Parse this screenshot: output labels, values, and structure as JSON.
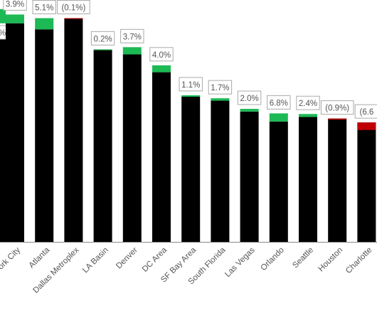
{
  "chart_data": {
    "type": "bar",
    "title": "",
    "xlabel": "",
    "ylabel": "",
    "categories": [
      "York City",
      "Atlanta",
      "Dallas Metroplex",
      "LA Basin",
      "Denver",
      "DC Area",
      "SF Bay Area",
      "South Florida",
      "Las Vegas",
      "Orlando",
      "Seattle",
      "Houston",
      "Charlotte"
    ],
    "series": [
      {
        "values": [
          72.3,
          70.3,
          74.0,
          63.4,
          62.0,
          56.1,
          48.0,
          46.7,
          43.1,
          39.8,
          41.3,
          40.8,
          39.5
        ]
      },
      {
        "values": [
          2.9,
          3.7,
          -0.1,
          0.2,
          2.4,
          2.3,
          0.5,
          0.8,
          0.9,
          2.7,
          1.0,
          -0.4,
          -2.5
        ]
      }
    ],
    "data_labels": [
      "3.9%",
      "5.1%",
      "(0.1%)",
      "0.2%",
      "3.7%",
      "4.0%",
      "1.1%",
      "1.7%",
      "2.0%",
      "6.8%",
      "2.4%",
      "(0.9%)",
      "(6.6"
    ],
    "partial_left_label": "%",
    "ylim": [
      0,
      80
    ],
    "grid": false,
    "legend": "none",
    "colors": {
      "base": "#000000",
      "positive": "#1db954",
      "negative": "#c00000",
      "axis": "#888888",
      "label_text": "#555555",
      "label_border": "#aaaaaa"
    }
  }
}
